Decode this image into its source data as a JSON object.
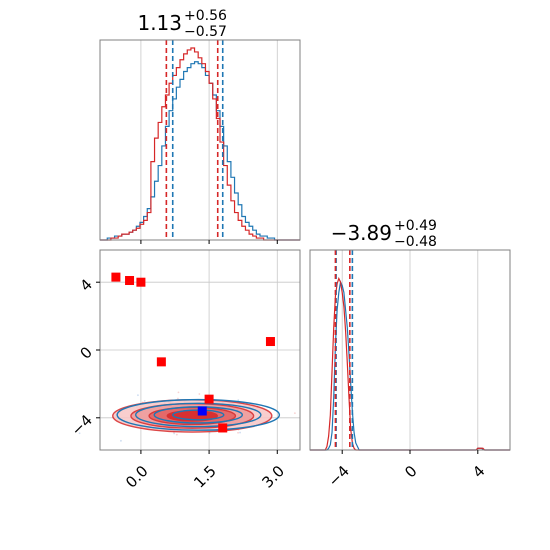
{
  "chart_data": [
    {
      "type": "histogram",
      "panel": "top-left",
      "title": {
        "median": "1.13",
        "plus": "+0.56",
        "minus": "−0.57"
      },
      "xlim": [
        -0.9,
        3.5
      ],
      "grid": true,
      "series": [
        {
          "name": "",
          "color": "#1f77b4",
          "bin_edges_start": -0.9,
          "bin_width": 0.08,
          "counts": [
            0,
            0,
            1,
            1,
            2,
            2,
            3,
            3,
            4,
            5,
            7,
            9,
            12,
            16,
            22,
            30,
            38,
            48,
            58,
            66,
            72,
            78,
            82,
            86,
            88,
            90,
            91,
            90,
            88,
            84,
            80,
            74,
            66,
            58,
            48,
            40,
            32,
            24,
            18,
            12,
            9,
            7,
            5,
            3,
            2,
            2,
            1,
            1,
            0,
            0,
            0,
            0,
            0,
            0,
            0
          ],
          "quantiles": [
            0.7,
            1.13,
            1.8
          ]
        },
        {
          "name": "",
          "color": "#d62728",
          "bin_edges_start": -0.9,
          "bin_width": 0.08,
          "counts": [
            0,
            0,
            0,
            1,
            1,
            2,
            3,
            3,
            4,
            5,
            6,
            8,
            10,
            14,
            40,
            52,
            60,
            68,
            74,
            80,
            84,
            88,
            92,
            95,
            97,
            98,
            96,
            93,
            90,
            86,
            80,
            72,
            62,
            50,
            38,
            28,
            20,
            14,
            10,
            7,
            5,
            3,
            2,
            1,
            1,
            0,
            0,
            0,
            0,
            0,
            0,
            0,
            0,
            0,
            0
          ],
          "quantiles": [
            0.56,
            1.13,
            1.69
          ]
        }
      ]
    },
    {
      "type": "scatter-contour",
      "panel": "bottom-left",
      "xlim": [
        -0.9,
        3.5
      ],
      "ylim": [
        -5.9,
        5.9
      ],
      "xticks": [
        "0.0",
        "1.5",
        "3.0"
      ],
      "yticks": [
        "−4",
        "0",
        "4"
      ],
      "xtick_values": [
        0.0,
        1.5,
        3.0
      ],
      "ytick_values": [
        -4,
        0,
        4
      ],
      "grid": true,
      "contour_center": [
        1.13,
        -3.89
      ],
      "red_points": [
        [
          -0.55,
          4.3
        ],
        [
          -0.25,
          4.1
        ],
        [
          0.0,
          4.0
        ],
        [
          0.45,
          -0.7
        ],
        [
          2.85,
          0.5
        ],
        [
          1.5,
          -2.9
        ],
        [
          1.8,
          -4.6
        ]
      ],
      "blue_points": [
        [
          1.35,
          -3.6
        ]
      ],
      "colors": {
        "red": "#d62728",
        "blue": "#1f77b4",
        "marker_red": "#ff0000",
        "marker_blue": "#0000ff"
      }
    },
    {
      "type": "histogram",
      "panel": "bottom-right",
      "title": {
        "median": "−3.89",
        "plus": "+0.49",
        "minus": "−0.48"
      },
      "xlim": [
        -5.9,
        5.9
      ],
      "xticks": [
        "−4",
        "0",
        "4"
      ],
      "xtick_values": [
        -4,
        0,
        4
      ],
      "grid": true,
      "series": [
        {
          "name": "",
          "color": "#1f77b4",
          "quantiles": [
            -4.36,
            -3.89,
            -3.4
          ]
        },
        {
          "name": "",
          "color": "#d62728",
          "quantiles": [
            -4.4,
            -3.89,
            -3.55
          ]
        }
      ]
    }
  ]
}
